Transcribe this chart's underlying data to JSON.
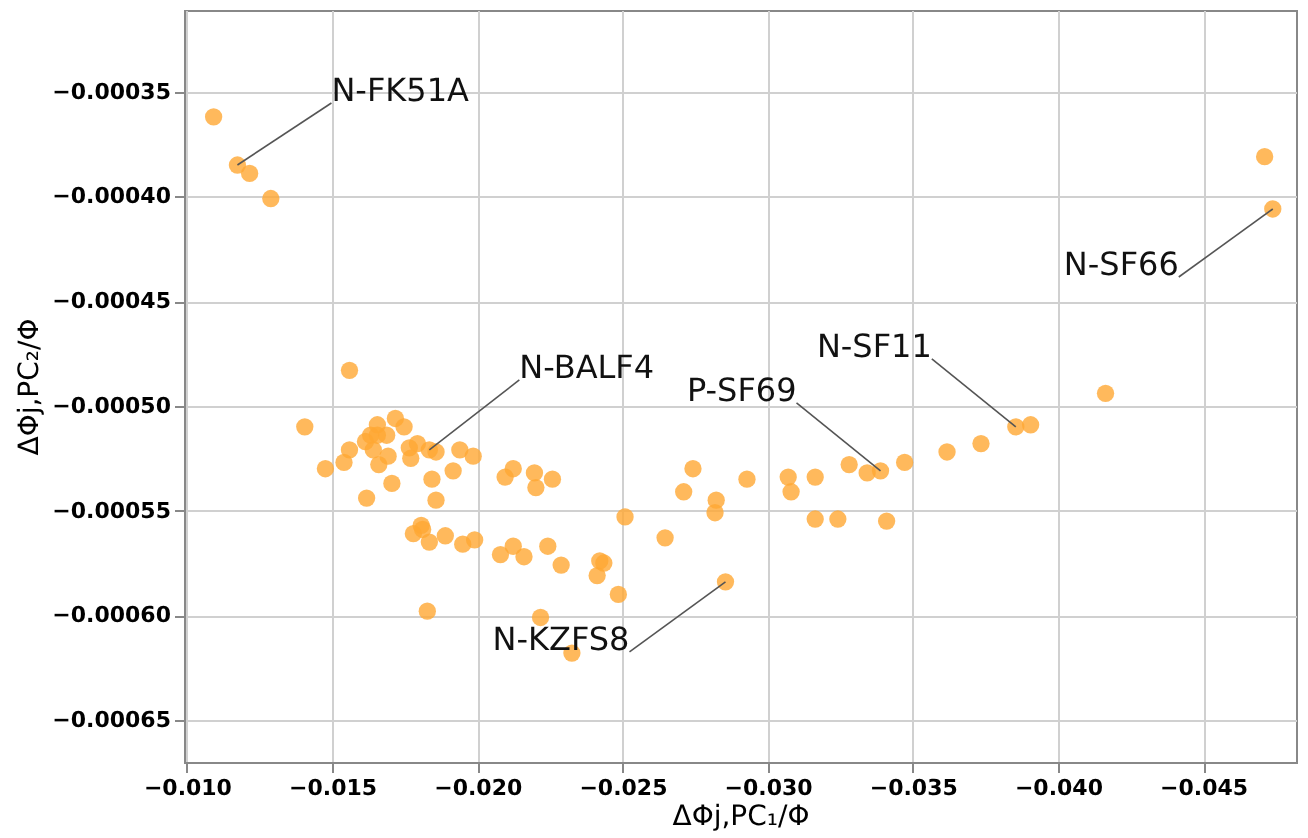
{
  "chart_data": {
    "type": "scatter",
    "xlabel": "ΔΦj,PC₁/Φ",
    "ylabel": "ΔΦj,PC₂/Φ",
    "xlim": [
      -0.0099,
      -0.0482
    ],
    "ylim": [
      -0.00067,
      -0.000311
    ],
    "xticks": [
      {
        "value": -0.01,
        "label": "−0.010"
      },
      {
        "value": -0.015,
        "label": "−0.015"
      },
      {
        "value": -0.02,
        "label": "−0.020"
      },
      {
        "value": -0.025,
        "label": "−0.025"
      },
      {
        "value": -0.03,
        "label": "−0.030"
      },
      {
        "value": -0.035,
        "label": "−0.035"
      },
      {
        "value": -0.04,
        "label": "−0.040"
      },
      {
        "value": -0.045,
        "label": "−0.045"
      }
    ],
    "yticks": [
      {
        "value": -0.00035,
        "label": "−0.00035"
      },
      {
        "value": -0.0004,
        "label": "−0.00040"
      },
      {
        "value": -0.00045,
        "label": "−0.00045"
      },
      {
        "value": -0.0005,
        "label": "−0.00050"
      },
      {
        "value": -0.00055,
        "label": "−0.00055"
      },
      {
        "value": -0.0006,
        "label": "−0.00060"
      },
      {
        "value": -0.00065,
        "label": "−0.00065"
      }
    ],
    "grid": true,
    "marker": "circle",
    "series": [
      {
        "color": "#ffa733",
        "x": [
          -0.01092,
          -0.01174,
          -0.01216,
          -0.01289,
          -0.0156,
          -0.01406,
          -0.01477,
          -0.01541,
          -0.0156,
          -0.01619,
          -0.01615,
          -0.01633,
          -0.01642,
          -0.01656,
          -0.01661,
          -0.01656,
          -0.01688,
          -0.01693,
          -0.01706,
          -0.01718,
          -0.01748,
          -0.01766,
          -0.01771,
          -0.01794,
          -0.01835,
          -0.01858,
          -0.01844,
          -0.01858,
          -0.0178,
          -0.01807,
          -0.01812,
          -0.01835,
          -0.01828,
          -0.0189,
          -0.01917,
          -0.0194,
          -0.01986,
          -0.0195,
          -0.01991,
          -0.0208,
          -0.02096,
          -0.02124,
          -0.02124,
          -0.02161,
          -0.02197,
          -0.02202,
          -0.02259,
          -0.02218,
          -0.02243,
          -0.02289,
          -0.02326,
          -0.02413,
          -0.02422,
          -0.02436,
          -0.02486,
          -0.02509,
          -0.02647,
          -0.02711,
          -0.02743,
          -0.02819,
          -0.02823,
          -0.02855,
          -0.02929,
          -0.03071,
          -0.03081,
          -0.03164,
          -0.03164,
          -0.03242,
          -0.03281,
          -0.03343,
          -0.03389,
          -0.0341,
          -0.03472,
          -0.03618,
          -0.03735,
          -0.03855,
          -0.03906,
          -0.04164,
          -0.04712,
          -0.0474
        ],
        "values": [
          -0.000362,
          -0.000385,
          -0.000389,
          -0.000401,
          -0.000483,
          -0.00051,
          -0.00053,
          -0.000527,
          -0.000521,
          -0.000544,
          -0.000517,
          -0.000514,
          -0.000521,
          -0.000509,
          -0.000528,
          -0.000514,
          -0.000514,
          -0.000524,
          -0.000537,
          -0.000506,
          -0.00051,
          -0.00052,
          -0.000525,
          -0.000518,
          -0.000521,
          -0.000522,
          -0.000535,
          -0.000545,
          -0.000561,
          -0.000557,
          -0.000559,
          -0.000565,
          -0.000598,
          -0.000562,
          -0.000531,
          -0.000521,
          -0.000524,
          -0.000566,
          -0.000564,
          -0.000571,
          -0.000534,
          -0.00053,
          -0.000567,
          -0.000572,
          -0.000532,
          -0.000539,
          -0.000535,
          -0.000601,
          -0.000567,
          -0.000576,
          -0.000618,
          -0.000581,
          -0.000574,
          -0.000575,
          -0.00059,
          -0.000553,
          -0.000563,
          -0.000541,
          -0.00053,
          -0.000551,
          -0.000545,
          -0.000584,
          -0.000535,
          -0.000534,
          -0.000541,
          -0.000534,
          -0.000554,
          -0.000554,
          -0.000528,
          -0.000532,
          -0.000531,
          -0.000555,
          -0.000527,
          -0.000522,
          -0.000518,
          -0.00051,
          -0.000509,
          -0.000494,
          -0.000381,
          -0.000406
        ]
      }
    ],
    "annotations": [
      {
        "text": "N-FK51A",
        "x": -0.01174,
        "y": -0.000385
      },
      {
        "text": "N-BALF4",
        "x": -0.01835,
        "y": -0.000521
      },
      {
        "text": "P-SF69",
        "x": -0.03389,
        "y": -0.000531
      },
      {
        "text": "N-SF11",
        "x": -0.03855,
        "y": -0.00051
      },
      {
        "text": "N-SF66",
        "x": -0.0474,
        "y": -0.000406
      },
      {
        "text": "N-KZFS8",
        "x": -0.02855,
        "y": -0.000584
      }
    ]
  }
}
